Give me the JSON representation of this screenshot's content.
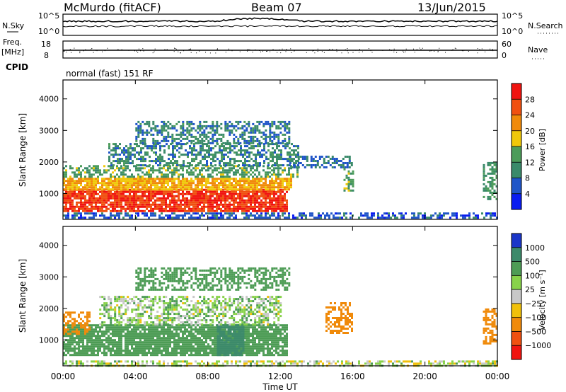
{
  "header": {
    "title": "McMurdo (fitACF)",
    "beam": "Beam 07",
    "date": "13/Jun/2015"
  },
  "panels": {
    "nsky_label": "N.Sky",
    "nsky_tick_hi": "10^5",
    "nsky_tick_lo": "10^0",
    "nsearch_label": "N.Search",
    "nsearch_tick_hi": "10^5",
    "nsearch_tick_lo": "10^0",
    "freq_label": "Freq.",
    "freq_unit": "[MHz]",
    "freq_tick_hi": "18",
    "freq_tick_lo": "8",
    "nave_label": "Nave",
    "nave_tick_hi": "60",
    "nave_tick_lo": "0",
    "cpid_label": "CPID",
    "cpid_value": "normal (fast) 151 RF"
  },
  "axes": {
    "ylabel": "Slant Range [km]",
    "xlabel": "Time UT",
    "ytick_labels": [
      "1000",
      "2000",
      "3000",
      "4000"
    ],
    "xtick_labels": [
      "00:00",
      "04:00",
      "08:00",
      "12:00",
      "16:00",
      "20:00",
      "00:00"
    ]
  },
  "colorbars": {
    "power_label": "Power [dB]",
    "power_ticks": [
      "4",
      "8",
      "12",
      "16",
      "20",
      "24",
      "28"
    ],
    "velocity_label": "Velocity [m s⁻¹]",
    "velocity_ticks": [
      "1000",
      "500",
      "100",
      "25",
      "−25",
      "−100",
      "−500",
      "−1000"
    ]
  },
  "colors": {
    "power": [
      "#0a1cf0",
      "#1f55c8",
      "#3a8a6a",
      "#4c9c5a",
      "#f0c80a",
      "#f08a0a",
      "#f05010",
      "#f01410"
    ],
    "velocity": [
      "#1a36c8",
      "#3c8a6a",
      "#4d9c55",
      "#88d24a",
      "#c8c8c8",
      "#f0c00a",
      "#f08a0a",
      "#f05010",
      "#f01410"
    ]
  },
  "chart_data": [
    {
      "type": "heatmap",
      "name": "power",
      "xlabel": "Time UT",
      "ylabel": "Slant Range [km]",
      "xlim": [
        0,
        24
      ],
      "ylim": [
        180,
        4600
      ],
      "colorbar": {
        "label": "Power [dB]",
        "range": [
          0,
          30
        ]
      },
      "regions": [
        {
          "t0": 0.0,
          "t1": 12.4,
          "r0": 450,
          "r1": 1150,
          "value": 28
        },
        {
          "t0": 0.0,
          "t1": 12.6,
          "r0": 1150,
          "r1": 1500,
          "value": 20
        },
        {
          "t0": 0.0,
          "t1": 13.0,
          "r0": 1500,
          "r1": 1900,
          "value": 13
        },
        {
          "t0": 2.5,
          "t1": 13.0,
          "r0": 1900,
          "r1": 2600,
          "value": 10
        },
        {
          "t0": 4.0,
          "t1": 12.5,
          "r0": 2600,
          "r1": 3300,
          "value": 9
        },
        {
          "t0": 12.5,
          "t1": 16.0,
          "r0": 1800,
          "r1": 2200,
          "value": 8
        },
        {
          "t0": 15.5,
          "t1": 16.0,
          "r0": 1000,
          "r1": 1800,
          "value": 14
        },
        {
          "t0": 23.2,
          "t1": 24.0,
          "r0": 800,
          "r1": 2000,
          "value": 12
        },
        {
          "t0": 0.0,
          "t1": 24.0,
          "r0": 200,
          "r1": 400,
          "value": 6
        }
      ]
    },
    {
      "type": "heatmap",
      "name": "velocity",
      "xlabel": "Time UT",
      "ylabel": "Slant Range [km]",
      "xlim": [
        0,
        24
      ],
      "ylim": [
        180,
        4600
      ],
      "colorbar": {
        "label": "Velocity [m s⁻¹]",
        "range": [
          -1000,
          1000
        ]
      },
      "regions": [
        {
          "t0": 0.0,
          "t1": 12.4,
          "r0": 500,
          "r1": 1500,
          "value": 300
        },
        {
          "t0": 8.5,
          "t1": 10.0,
          "r0": 500,
          "r1": 1500,
          "value": 900
        },
        {
          "t0": 0.0,
          "t1": 1.5,
          "r0": 1200,
          "r1": 1900,
          "value": -200
        },
        {
          "t0": 2.0,
          "t1": 12.0,
          "r0": 1500,
          "r1": 2400,
          "value": 60
        },
        {
          "t0": 4.0,
          "t1": 12.5,
          "r0": 2600,
          "r1": 3300,
          "value": 400
        },
        {
          "t0": 14.5,
          "t1": 16.0,
          "r0": 1200,
          "r1": 2200,
          "value": -250
        },
        {
          "t0": 23.2,
          "t1": 24.0,
          "r0": 900,
          "r1": 2000,
          "value": -300
        },
        {
          "t0": 0.0,
          "t1": 24.0,
          "r0": 200,
          "r1": 350,
          "value": 20
        }
      ]
    }
  ]
}
